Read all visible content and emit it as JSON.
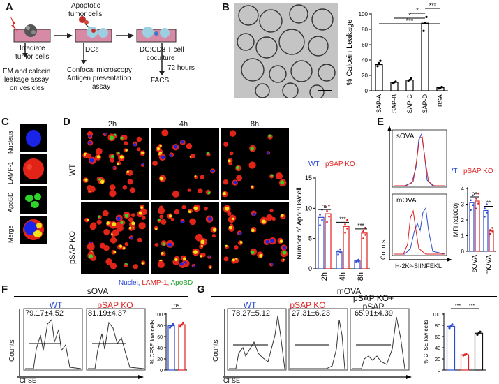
{
  "panel_labels": [
    "A",
    "B",
    "C",
    "D",
    "E",
    "F",
    "G"
  ],
  "panelA": {
    "apoptotic": "Apoptotic",
    "tumor_cells": "tumor cells",
    "irradiate": "Irradiate",
    "tumor_cells2": "tumor cells",
    "dcs": "DCs",
    "coculture1": "DC:CD8 T cell",
    "coculture2": "coculture",
    "hours": "72 hours",
    "facs": "FACS",
    "em1": "EM and calcein",
    "em2": "leakage assay",
    "em3": "on vesicles",
    "confocal1": "Confocal microscopy",
    "confocal2": "Antigen presentation",
    "confocal3": "assay"
  },
  "panelC": {
    "rows": [
      "Nucleus",
      "LAMP-1",
      "ApoBD",
      "Merge"
    ]
  },
  "panelD": {
    "cols": [
      "2h",
      "4h",
      "8h"
    ],
    "rows": [
      "WT",
      "pSAP KO"
    ],
    "legend_nuclei": "Nuclei,",
    "legend_lamp": "LAMP-1,",
    "legend_apobd": "ApoBD"
  },
  "panelF": {
    "title": "sOVA",
    "wt": "WT",
    "wt_val": "79.17±4.52",
    "ko": "pSAP KO",
    "ko_val": "81.19±4.37",
    "ylabel": "Counts",
    "xlabel": "CFSE"
  },
  "panelG": {
    "title": "mOVA",
    "wt": "WT",
    "wt_val": "78.27±5.12",
    "ko": "pSAP KO",
    "ko_val": "27.31±6.23",
    "rescue1": "pSAP KO+",
    "rescue2": "pSAP",
    "rescue_val": "65.91±4.39",
    "ylabel": "Counts",
    "xlabel": "CFSE"
  },
  "panelE": {
    "hist1": "sOVA",
    "hist2": "mOVA",
    "ylabel": "Counts",
    "xlabel": "H-2Kᵇ-SIINFEKL"
  },
  "chart_data": [
    {
      "id": "B",
      "type": "bar",
      "categories": [
        "SAP-A",
        "SAP-B",
        "SAP-C",
        "SAP-D",
        "BSA"
      ],
      "values": [
        34,
        11,
        14,
        88,
        4
      ],
      "points": [
        [
          32,
          36,
          39
        ],
        [
          10,
          11,
          12
        ],
        [
          13,
          14,
          16
        ],
        [
          78,
          88,
          96
        ],
        [
          3,
          4,
          5
        ]
      ],
      "ylabel": "% Calcein Leakage",
      "ylim": [
        0,
        100
      ],
      "yticks": [
        0,
        20,
        40,
        60,
        80,
        100
      ],
      "significance": [
        "***",
        "*",
        "*",
        "***"
      ]
    },
    {
      "id": "D",
      "type": "bar",
      "categories": [
        "2h",
        "4h",
        "8h"
      ],
      "series": [
        {
          "name": "WT",
          "color": "#2b4bd1",
          "values": [
            8.5,
            2.8,
            1.3
          ]
        },
        {
          "name": "pSAP KO",
          "color": "#e02020",
          "values": [
            9.1,
            7.0,
            5.9
          ]
        }
      ],
      "ylabel": "Number of ApoBDs/cell",
      "ylim": [
        0,
        15
      ],
      "yticks": [
        0,
        5,
        10,
        15
      ],
      "significance": [
        "ns",
        "***",
        "***"
      ]
    },
    {
      "id": "E",
      "type": "bar",
      "categories": [
        "sOVA",
        "mOVA"
      ],
      "series": [
        {
          "name": "WT",
          "color": "#2b4bd1",
          "values": [
            3.1,
            2.6
          ]
        },
        {
          "name": "pSAP KO",
          "color": "#e02020",
          "values": [
            3.2,
            1.3
          ]
        }
      ],
      "ylabel": "MFI (x1000)",
      "ylim": [
        0,
        4
      ],
      "yticks": [
        0,
        1,
        2,
        3,
        4
      ],
      "significance": [
        "ns",
        "**"
      ]
    },
    {
      "id": "F",
      "type": "bar",
      "categories": [
        "WT",
        "pSAP KO"
      ],
      "values": [
        79.2,
        81.2
      ],
      "colors": [
        "#2b4bd1",
        "#e02020"
      ],
      "ylabel": "% CFSE low cells",
      "ylim": [
        0,
        100
      ],
      "yticks": [
        0,
        20,
        40,
        60,
        80,
        100
      ],
      "significance": [
        "ns"
      ]
    },
    {
      "id": "G",
      "type": "bar",
      "categories": [
        "WT",
        "pSAP KO",
        "pSAP KO+pSAP"
      ],
      "values": [
        78.3,
        27.3,
        65.9
      ],
      "colors": [
        "#2b4bd1",
        "#e02020",
        "#111111"
      ],
      "ylabel": "% CFSE low cells",
      "ylim": [
        0,
        100
      ],
      "yticks": [
        0,
        20,
        40,
        60,
        80,
        100
      ],
      "significance": [
        "***",
        "***"
      ]
    }
  ]
}
